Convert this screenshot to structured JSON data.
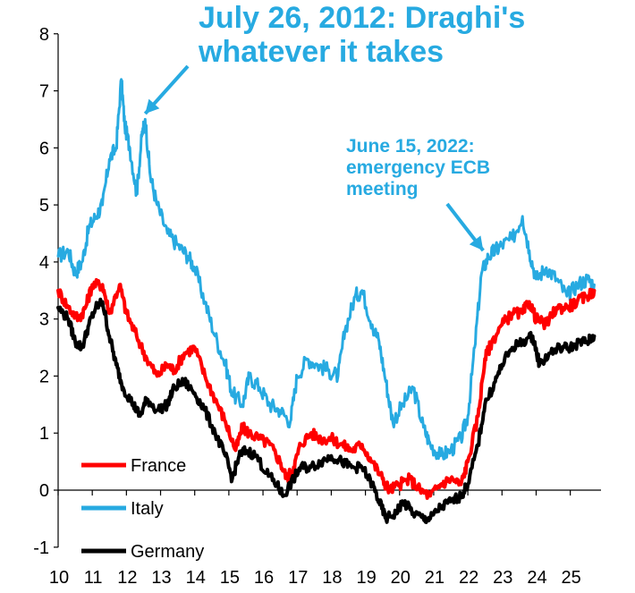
{
  "chart_data": {
    "type": "line",
    "title": "",
    "xlabel": "",
    "ylabel": "",
    "ylim": [
      -1,
      8
    ],
    "xlim": [
      2010,
      2025.9
    ],
    "y_ticks": [
      "8",
      "7",
      "6",
      "5",
      "4",
      "3",
      "2",
      "1",
      "0",
      "-1"
    ],
    "x_ticks": [
      "10",
      "11",
      "12",
      "13",
      "14",
      "15",
      "16",
      "17",
      "18",
      "19",
      "20",
      "21",
      "22",
      "23",
      "24",
      "25"
    ],
    "grid": false,
    "legend": "bottom-left",
    "annotations": [
      {
        "lines": [
          "July 26, 2012: Draghi's",
          "whatever it takes"
        ],
        "color": "#27AAE1",
        "arrow_to": [
          2012.55,
          6.6
        ]
      },
      {
        "lines": [
          "June 15, 2022:",
          "emergency ECB",
          "meeting"
        ],
        "color": "#27AAE1",
        "arrow_to": [
          2022.45,
          4.2
        ]
      }
    ],
    "series": [
      {
        "name": "France",
        "color": "#FF0000",
        "x": [
          2010.0,
          2010.3,
          2010.6,
          2010.8,
          2011.0,
          2011.3,
          2011.5,
          2011.8,
          2012.0,
          2012.3,
          2012.6,
          2012.9,
          2013.2,
          2013.4,
          2013.7,
          2014.0,
          2014.3,
          2014.6,
          2014.9,
          2015.2,
          2015.4,
          2015.6,
          2015.9,
          2016.2,
          2016.5,
          2016.7,
          2016.9,
          2017.1,
          2017.4,
          2017.7,
          2018.0,
          2018.3,
          2018.6,
          2018.9,
          2019.2,
          2019.5,
          2019.7,
          2020.0,
          2020.3,
          2020.6,
          2020.9,
          2021.2,
          2021.5,
          2021.8,
          2022.0,
          2022.3,
          2022.5,
          2022.7,
          2023.0,
          2023.3,
          2023.6,
          2023.8,
          2024.0,
          2024.3,
          2024.6,
          2024.9,
          2025.2,
          2025.5,
          2025.7
        ],
        "values": [
          3.5,
          3.2,
          3.0,
          3.2,
          3.6,
          3.6,
          3.1,
          3.6,
          3.1,
          2.7,
          2.3,
          2.0,
          2.2,
          2.1,
          2.4,
          2.5,
          2.0,
          1.6,
          1.2,
          0.7,
          1.1,
          1.0,
          0.9,
          0.8,
          0.5,
          0.2,
          0.4,
          0.8,
          1.0,
          0.9,
          0.9,
          0.8,
          0.7,
          0.8,
          0.5,
          0.2,
          0.0,
          0.1,
          0.2,
          0.0,
          -0.1,
          0.1,
          0.2,
          0.1,
          0.5,
          1.3,
          2.3,
          2.6,
          2.9,
          3.1,
          3.1,
          3.3,
          3.0,
          2.9,
          3.2,
          3.2,
          3.3,
          3.4,
          3.5
        ]
      },
      {
        "name": "Italy",
        "color": "#27AAE1",
        "x": [
          2010.0,
          2010.3,
          2010.5,
          2010.7,
          2010.9,
          2011.1,
          2011.3,
          2011.5,
          2011.7,
          2011.85,
          2011.95,
          2012.1,
          2012.3,
          2012.45,
          2012.55,
          2012.7,
          2012.9,
          2013.2,
          2013.5,
          2013.8,
          2014.0,
          2014.3,
          2014.6,
          2014.9,
          2015.1,
          2015.4,
          2015.6,
          2015.9,
          2016.2,
          2016.5,
          2016.8,
          2017.0,
          2017.3,
          2017.6,
          2017.9,
          2018.2,
          2018.4,
          2018.7,
          2018.9,
          2019.2,
          2019.4,
          2019.6,
          2019.8,
          2020.1,
          2020.4,
          2020.7,
          2020.9,
          2021.2,
          2021.5,
          2021.8,
          2022.0,
          2022.2,
          2022.4,
          2022.6,
          2022.8,
          2023.0,
          2023.3,
          2023.6,
          2023.8,
          2024.0,
          2024.3,
          2024.6,
          2024.9,
          2025.2,
          2025.5,
          2025.7
        ],
        "values": [
          4.1,
          4.2,
          3.8,
          4.0,
          4.6,
          4.8,
          5.0,
          5.8,
          6.0,
          7.2,
          6.4,
          6.0,
          5.2,
          6.2,
          6.5,
          5.5,
          5.0,
          4.5,
          4.3,
          4.1,
          3.9,
          3.3,
          2.7,
          2.2,
          1.7,
          1.5,
          2.0,
          1.8,
          1.5,
          1.4,
          1.2,
          2.0,
          2.3,
          2.2,
          2.1,
          2.0,
          2.8,
          3.4,
          3.5,
          2.9,
          2.6,
          1.9,
          1.2,
          1.5,
          1.8,
          1.1,
          0.8,
          0.6,
          0.7,
          0.9,
          1.3,
          2.5,
          3.8,
          4.1,
          4.2,
          4.3,
          4.4,
          4.8,
          4.2,
          3.7,
          3.9,
          3.7,
          3.4,
          3.6,
          3.7,
          3.6
        ]
      },
      {
        "name": "Germany",
        "color": "#000000",
        "x": [
          2010.0,
          2010.3,
          2010.5,
          2010.7,
          2010.9,
          2011.1,
          2011.3,
          2011.5,
          2011.7,
          2011.9,
          2012.2,
          2012.4,
          2012.6,
          2012.9,
          2013.2,
          2013.4,
          2013.7,
          2014.0,
          2014.3,
          2014.6,
          2014.9,
          2015.1,
          2015.3,
          2015.5,
          2015.8,
          2016.1,
          2016.4,
          2016.6,
          2016.9,
          2017.1,
          2017.4,
          2017.7,
          2018.0,
          2018.3,
          2018.6,
          2018.9,
          2019.2,
          2019.4,
          2019.6,
          2019.9,
          2020.1,
          2020.4,
          2020.7,
          2020.9,
          2021.2,
          2021.5,
          2021.8,
          2022.0,
          2022.3,
          2022.5,
          2022.8,
          2023.0,
          2023.3,
          2023.6,
          2023.9,
          2024.1,
          2024.4,
          2024.7,
          2025.0,
          2025.3,
          2025.5,
          2025.7
        ],
        "values": [
          3.2,
          3.0,
          2.6,
          2.5,
          2.9,
          3.2,
          3.3,
          2.7,
          2.2,
          1.8,
          1.5,
          1.3,
          1.6,
          1.4,
          1.5,
          1.8,
          1.9,
          1.7,
          1.4,
          1.0,
          0.6,
          0.2,
          0.6,
          0.7,
          0.6,
          0.3,
          0.1,
          -0.1,
          0.2,
          0.4,
          0.4,
          0.5,
          0.6,
          0.5,
          0.4,
          0.4,
          0.1,
          -0.2,
          -0.5,
          -0.4,
          -0.2,
          -0.4,
          -0.5,
          -0.5,
          -0.3,
          -0.2,
          -0.1,
          0.1,
          0.8,
          1.5,
          1.9,
          2.2,
          2.5,
          2.6,
          2.7,
          2.2,
          2.4,
          2.5,
          2.5,
          2.6,
          2.6,
          2.7
        ]
      }
    ]
  }
}
